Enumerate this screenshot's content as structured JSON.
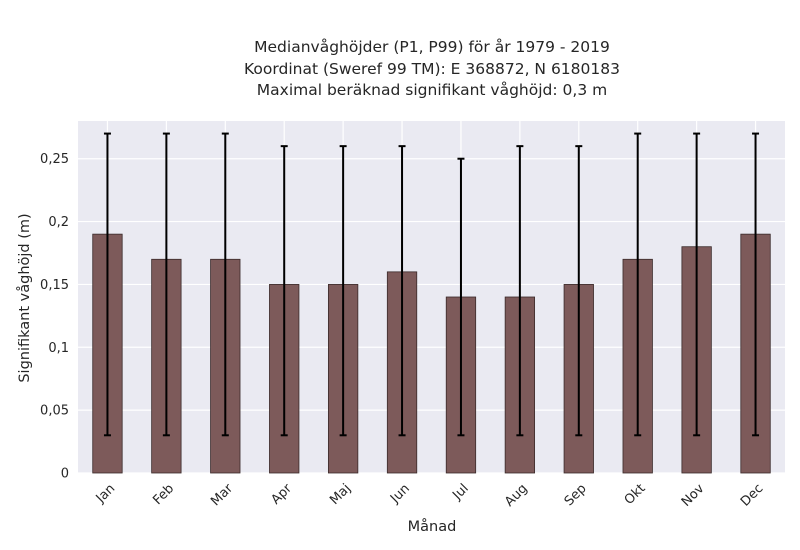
{
  "chart_data": {
    "type": "bar",
    "title_lines": [
      "Medianvåghöjder (P1, P99) för år 1979 - 2019",
      "Koordinat (Sweref 99 TM): E 368872, N 6180183",
      "Maximal beräknad signifikant våghöjd: 0,3 m"
    ],
    "xlabel": "Månad",
    "ylabel": "Signifikant våghöjd (m)",
    "categories": [
      "Jan",
      "Feb",
      "Mar",
      "Apr",
      "Maj",
      "Jun",
      "Jul",
      "Aug",
      "Sep",
      "Okt",
      "Nov",
      "Dec"
    ],
    "values": [
      0.19,
      0.17,
      0.17,
      0.15,
      0.15,
      0.16,
      0.14,
      0.14,
      0.15,
      0.17,
      0.18,
      0.19
    ],
    "p1": [
      0.03,
      0.03,
      0.03,
      0.03,
      0.03,
      0.03,
      0.03,
      0.03,
      0.03,
      0.03,
      0.03,
      0.03
    ],
    "p99": [
      0.27,
      0.27,
      0.27,
      0.26,
      0.26,
      0.26,
      0.25,
      0.26,
      0.26,
      0.27,
      0.27,
      0.27
    ],
    "ylim": [
      0,
      0.28
    ],
    "yticks": [
      0,
      0.05,
      0.1,
      0.15,
      0.2,
      0.25
    ],
    "ytick_labels": [
      "0",
      "0,05",
      "0,1",
      "0,15",
      "0,2",
      "0,25"
    ],
    "grid": true,
    "colors": {
      "bar": "#7d5a5a",
      "bar_edge": "#3a2a2a",
      "background": "#eaeaf2",
      "grid": "#ffffff",
      "errorbar": "#000000"
    }
  }
}
